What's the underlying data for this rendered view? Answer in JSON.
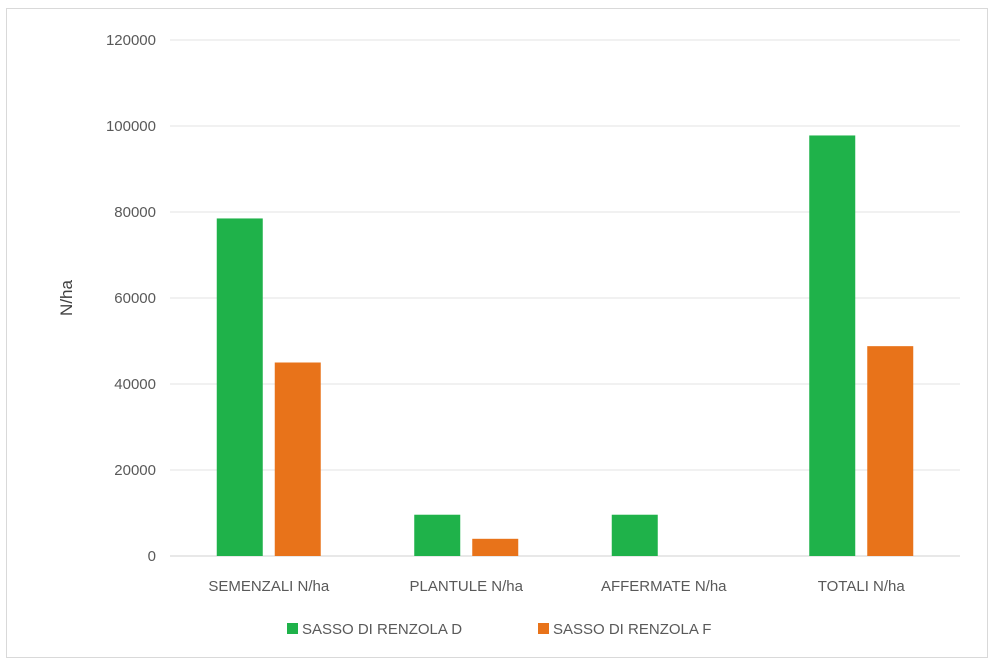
{
  "chart_data": {
    "type": "bar",
    "title": "",
    "xlabel": "",
    "ylabel": "N/ha",
    "ylim": [
      0,
      120000
    ],
    "yticks": [
      "0",
      "20000",
      "40000",
      "60000",
      "80000",
      "100000",
      "120000"
    ],
    "categories": [
      "SEMENZALI N/ha",
      "PLANTULE N/ha",
      "AFFERMATE N/ha",
      "TOTALI N/ha"
    ],
    "series": [
      {
        "name": "SASSO DI RENZOLA D",
        "color": "#1fb24a",
        "values": [
          78500,
          9600,
          9600,
          97800
        ]
      },
      {
        "name": "SASSO DI RENZOLA F",
        "color": "#e8731a",
        "values": [
          45000,
          4000,
          0,
          48800
        ]
      }
    ],
    "grid": true,
    "legend": "bottom"
  }
}
